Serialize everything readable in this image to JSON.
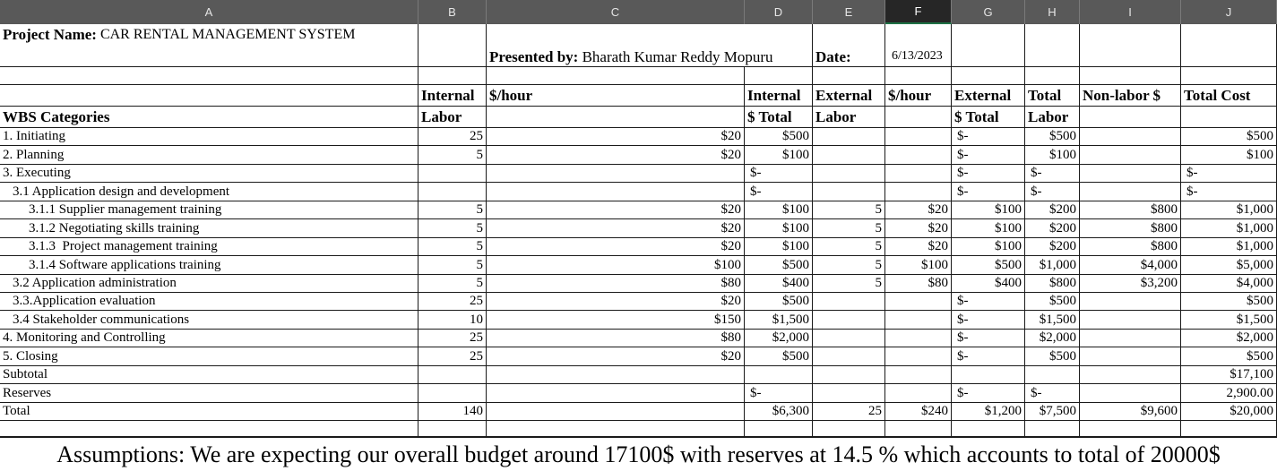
{
  "columns": [
    "A",
    "B",
    "C",
    "D",
    "E",
    "F",
    "G",
    "H",
    "I",
    "J"
  ],
  "header": {
    "project_label": "Project Name:",
    "project_name": "CAR RENTAL MANAGEMENT SYSTEM",
    "presented_label": "Presented by:",
    "presenter": "Bharath Kumar Reddy Mopuru",
    "date_label": "Date:",
    "date": "6/13/2023"
  },
  "table": {
    "header_rows": [
      {
        "B": "Internal",
        "C": "$/hour",
        "D": "Internal",
        "E": "External",
        "F": "$/hour",
        "G": "External",
        "H": "Total",
        "I": "Non-labor $",
        "J": "Total Cost"
      },
      {
        "A": "WBS Categories",
        "B": "Labor",
        "D": "$ Total",
        "E": "Labor",
        "G": "$ Total",
        "H": "Labor"
      }
    ],
    "rows": [
      {
        "A": "1. Initiating",
        "B": "25",
        "C": "$20",
        "D": "$500",
        "G": "$-",
        "H": "$500",
        "J": "$500"
      },
      {
        "A": "2. Planning",
        "B": "5",
        "C": "$20",
        "D": "$100",
        "G": "$-",
        "H": "$100",
        "J": "$100"
      },
      {
        "A": "3. Executing",
        "D": "$-",
        "G": "$-",
        "H": "$-",
        "J": "$-"
      },
      {
        "A": "3.1 Application design and development",
        "D": "$-",
        "G": "$-",
        "H": "$-",
        "J": "$-"
      },
      {
        "A": "3.1.1 Supplier management training",
        "B": "5",
        "C": "$20",
        "D": "$100",
        "E": "5",
        "F": "$20",
        "G": "$100",
        "H": "$200",
        "I": "$800",
        "J": "$1,000"
      },
      {
        "A": "3.1.2 Negotiating skills training",
        "B": "5",
        "C": "$20",
        "D": "$100",
        "E": "5",
        "F": "$20",
        "G": "$100",
        "H": "$200",
        "I": "$800",
        "J": "$1,000"
      },
      {
        "A": "3.1.3  Project management training",
        "B": "5",
        "C": "$20",
        "D": "$100",
        "E": "5",
        "F": "$20",
        "G": "$100",
        "H": "$200",
        "I": "$800",
        "J": "$1,000"
      },
      {
        "A": "3.1.4 Software applications training",
        "B": "5",
        "C": "$100",
        "D": "$500",
        "E": "5",
        "F": "$100",
        "G": "$500",
        "H": "$1,000",
        "I": "$4,000",
        "J": "$5,000"
      },
      {
        "A": "3.2 Application administration",
        "B": "5",
        "C": "$80",
        "D": "$400",
        "E": "5",
        "F": "$80",
        "G": "$400",
        "H": "$800",
        "I": "$3,200",
        "J": "$4,000"
      },
      {
        "A": "3.3.Application evaluation",
        "B": "25",
        "C": "$20",
        "D": "$500",
        "G": "$-",
        "H": "$500",
        "J": "$500"
      },
      {
        "A": "3.4 Stakeholder communications",
        "B": "10",
        "C": "$150",
        "D": "$1,500",
        "G": "$-",
        "H": "$1,500",
        "J": "$1,500"
      },
      {
        "A": "4. Monitoring and Controlling",
        "B": "25",
        "C": "$80",
        "D": "$2,000",
        "G": "$-",
        "H": "$2,000",
        "J": "$2,000"
      },
      {
        "A": "5. Closing",
        "B": "25",
        "C": "$20",
        "D": "$500",
        "G": "$-",
        "H": "$500",
        "J": "$500"
      },
      {
        "A": "Subtotal",
        "J": "$17,100"
      },
      {
        "A": "Reserves",
        "D": "$-",
        "G": "$-",
        "H": "$-",
        "J": "2,900.00"
      },
      {
        "A": "Total",
        "B": "140",
        "D": "$6,300",
        "E": "25",
        "F": "$240",
        "G": "$1,200",
        "H": "$7,500",
        "I": "$9,600",
        "J": "$20,000"
      }
    ]
  },
  "assumptions": "Assumptions: We are expecting our overall budget around 17100$ with reserves at 14.5 % which accounts to total of 20000$"
}
